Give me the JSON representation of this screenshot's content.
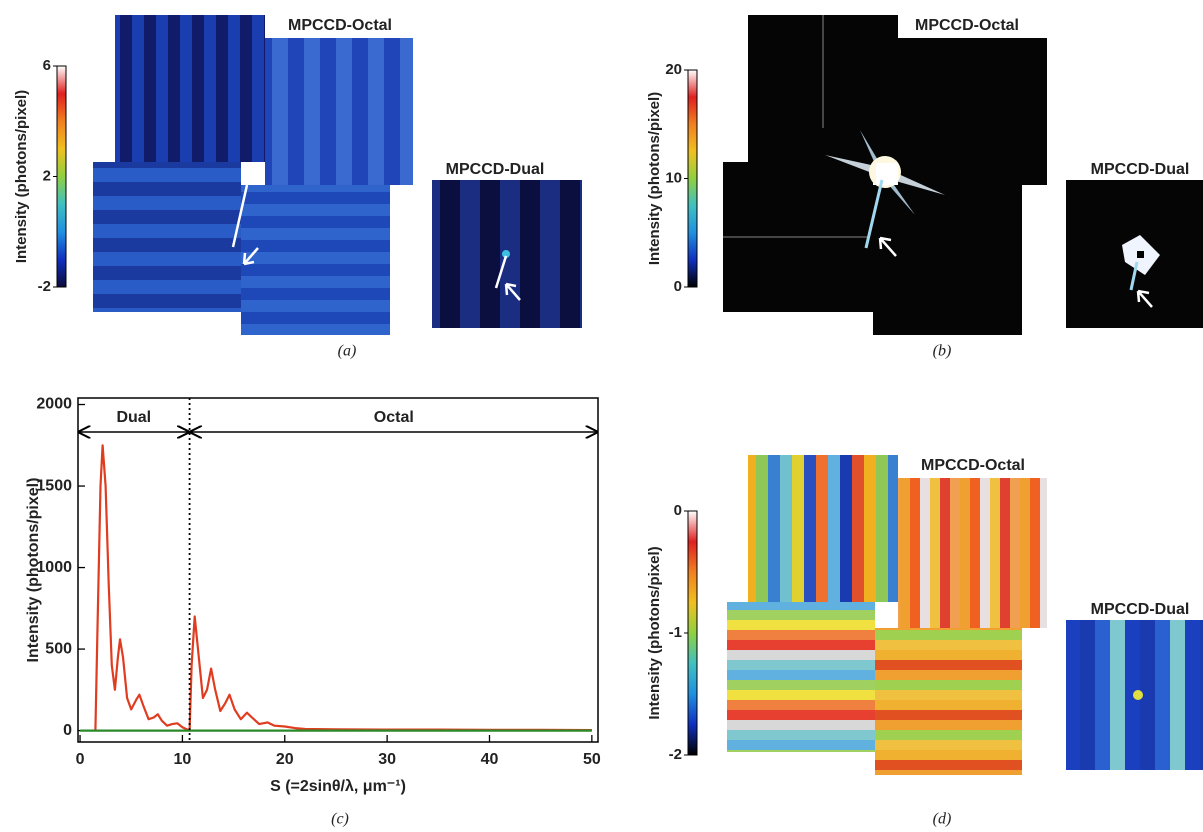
{
  "chart_data": [
    {
      "type": "image",
      "panel": "(a)",
      "ylabel": "Intensity (photons/pixel)",
      "ylim": [
        -2,
        6
      ],
      "yticks": [
        -2,
        2,
        6
      ],
      "colormap": [
        "#0b0b3a",
        "#1030c0",
        "#2090e0",
        "#40c0c0",
        "#90d040",
        "#f0c020",
        "#f08020",
        "#e02020",
        "#ffffff"
      ],
      "detector_labels": [
        "MPCCD-Octal",
        "MPCCD-Dual"
      ]
    },
    {
      "type": "image",
      "panel": "(b)",
      "ylabel": "Intensity (photons/pixel)",
      "ylim": [
        0,
        20
      ],
      "yticks": [
        0,
        10,
        20
      ],
      "colormap": [
        "#000000",
        "#1030c0",
        "#2090e0",
        "#40c0c0",
        "#90d040",
        "#f0c020",
        "#f08020",
        "#e02020",
        "#ffffff"
      ],
      "detector_labels": [
        "MPCCD-Octal",
        "MPCCD-Dual"
      ]
    },
    {
      "type": "line",
      "panel": "(c)",
      "xlabel": "S (=2sinθ/λ, μm⁻¹)",
      "ylabel": "Intensity (photons/pixel)",
      "xlim": [
        -0.2,
        50.6
      ],
      "ylim": [
        -70,
        2040
      ],
      "xticks": [
        0,
        10,
        20,
        30,
        40,
        50
      ],
      "yticks": [
        0,
        500,
        1000,
        1500,
        2000
      ],
      "series": [
        {
          "color": "#e03c20",
          "x": [
            1.5,
            1.7,
            2.0,
            2.2,
            2.5,
            2.8,
            3.1,
            3.4,
            3.7,
            3.9,
            4.2,
            4.6,
            5.0,
            5.5,
            5.8,
            6.2,
            6.7,
            7.2,
            7.6,
            8.0,
            8.5,
            9.0,
            9.5,
            10.0,
            10.7,
            10.9,
            11.2,
            11.6,
            12.0,
            12.4,
            12.8,
            13.2,
            13.7,
            14.2,
            14.6,
            15.1,
            15.7,
            16.3,
            16.8,
            17.5,
            18.3,
            19.0,
            20,
            21,
            22,
            25,
            30,
            35,
            40,
            45,
            50
          ],
          "values": [
            0,
            600,
            1500,
            1750,
            1500,
            900,
            400,
            250,
            450,
            560,
            450,
            200,
            130,
            190,
            220,
            150,
            70,
            80,
            100,
            60,
            30,
            40,
            45,
            20,
            0,
            400,
            700,
            450,
            200,
            250,
            380,
            250,
            120,
            170,
            220,
            130,
            70,
            110,
            80,
            40,
            50,
            30,
            25,
            15,
            10,
            8,
            6,
            6,
            5,
            4,
            3
          ]
        },
        {
          "color": "#2a8a2a",
          "x": [
            0,
            50
          ],
          "values": [
            0,
            0
          ]
        }
      ],
      "vline": 10.7,
      "ranges": [
        {
          "label": "Dual",
          "x": [
            -0.2,
            10.7
          ]
        },
        {
          "label": "Octal",
          "x": [
            10.7,
            50.6
          ]
        }
      ]
    },
    {
      "type": "image",
      "panel": "(d)",
      "ylabel": "Intensity (photons/pixel)",
      "ylim": [
        -2,
        0
      ],
      "yticks": [
        0,
        -1,
        -2
      ],
      "colormap": [
        "#000000",
        "#1030c0",
        "#2090e0",
        "#40c0c0",
        "#90d040",
        "#f0c020",
        "#f08020",
        "#e02020",
        "#ffffff"
      ],
      "detector_labels": [
        "MPCCD-Octal",
        "MPCCD-Dual"
      ]
    }
  ]
}
